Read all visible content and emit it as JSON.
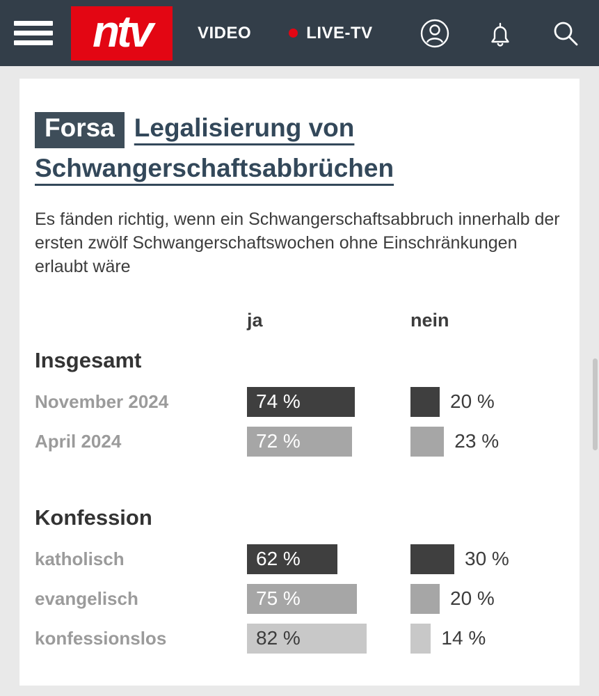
{
  "colors": {
    "header_bg": "#333e49",
    "brand_red": "#e30613",
    "title": "#33485a",
    "kicker_bg": "#3e4d59",
    "body_text": "#3c3c3c",
    "label_gray": "#9b9b9b",
    "page_bg": "#e9e9e9",
    "bar_dark": "#3f3f3f",
    "bar_medium": "#a6a6a6",
    "bar_light": "#c8c8c8"
  },
  "header": {
    "logo_text": "ntv",
    "video_label": "VIDEO",
    "live_label": "LIVE-TV",
    "icons": [
      "menu-icon",
      "profile-icon",
      "notifications-icon",
      "search-icon"
    ]
  },
  "article": {
    "kicker": "Forsa",
    "title": "Legalisierung von Schwangerschaftsabbrüchen",
    "description": "Es fänden richtig, wenn ein Schwangerschaftsabbruch innerhalb der ersten zwölf Schwangerschaftswochen ohne Einschränkungen erlaubt wäre"
  },
  "chart_data": {
    "type": "bar",
    "title": "Legalisierung von Schwangerschaftsabbrüchen",
    "question": "Es fänden richtig, wenn ein Schwangerschaftsabbruch innerhalb der ersten zwölf Schwangerschaftswochen ohne Einschränkungen erlaubt wäre",
    "unit": "%",
    "xlim": [
      0,
      100
    ],
    "columns": [
      "ja",
      "nein"
    ],
    "palette": {
      "dark": {
        "bar": "#3f3f3f",
        "label": "#ffffff"
      },
      "medium": {
        "bar": "#a6a6a6",
        "label": "#ffffff"
      },
      "light": {
        "bar": "#c8c8c8",
        "label": "#3c3c3c"
      }
    },
    "groups": [
      {
        "heading": "Insgesamt",
        "rows": [
          {
            "label": "November 2024",
            "ja": 74,
            "nein": 20,
            "shade": "dark"
          },
          {
            "label": "April 2024",
            "ja": 72,
            "nein": 23,
            "shade": "medium"
          }
        ]
      },
      {
        "heading": "Konfession",
        "rows": [
          {
            "label": "katholisch",
            "ja": 62,
            "nein": 30,
            "shade": "dark"
          },
          {
            "label": "evangelisch",
            "ja": 75,
            "nein": 20,
            "shade": "medium"
          },
          {
            "label": "konfessionslos",
            "ja": 82,
            "nein": 14,
            "shade": "light"
          }
        ]
      }
    ]
  }
}
